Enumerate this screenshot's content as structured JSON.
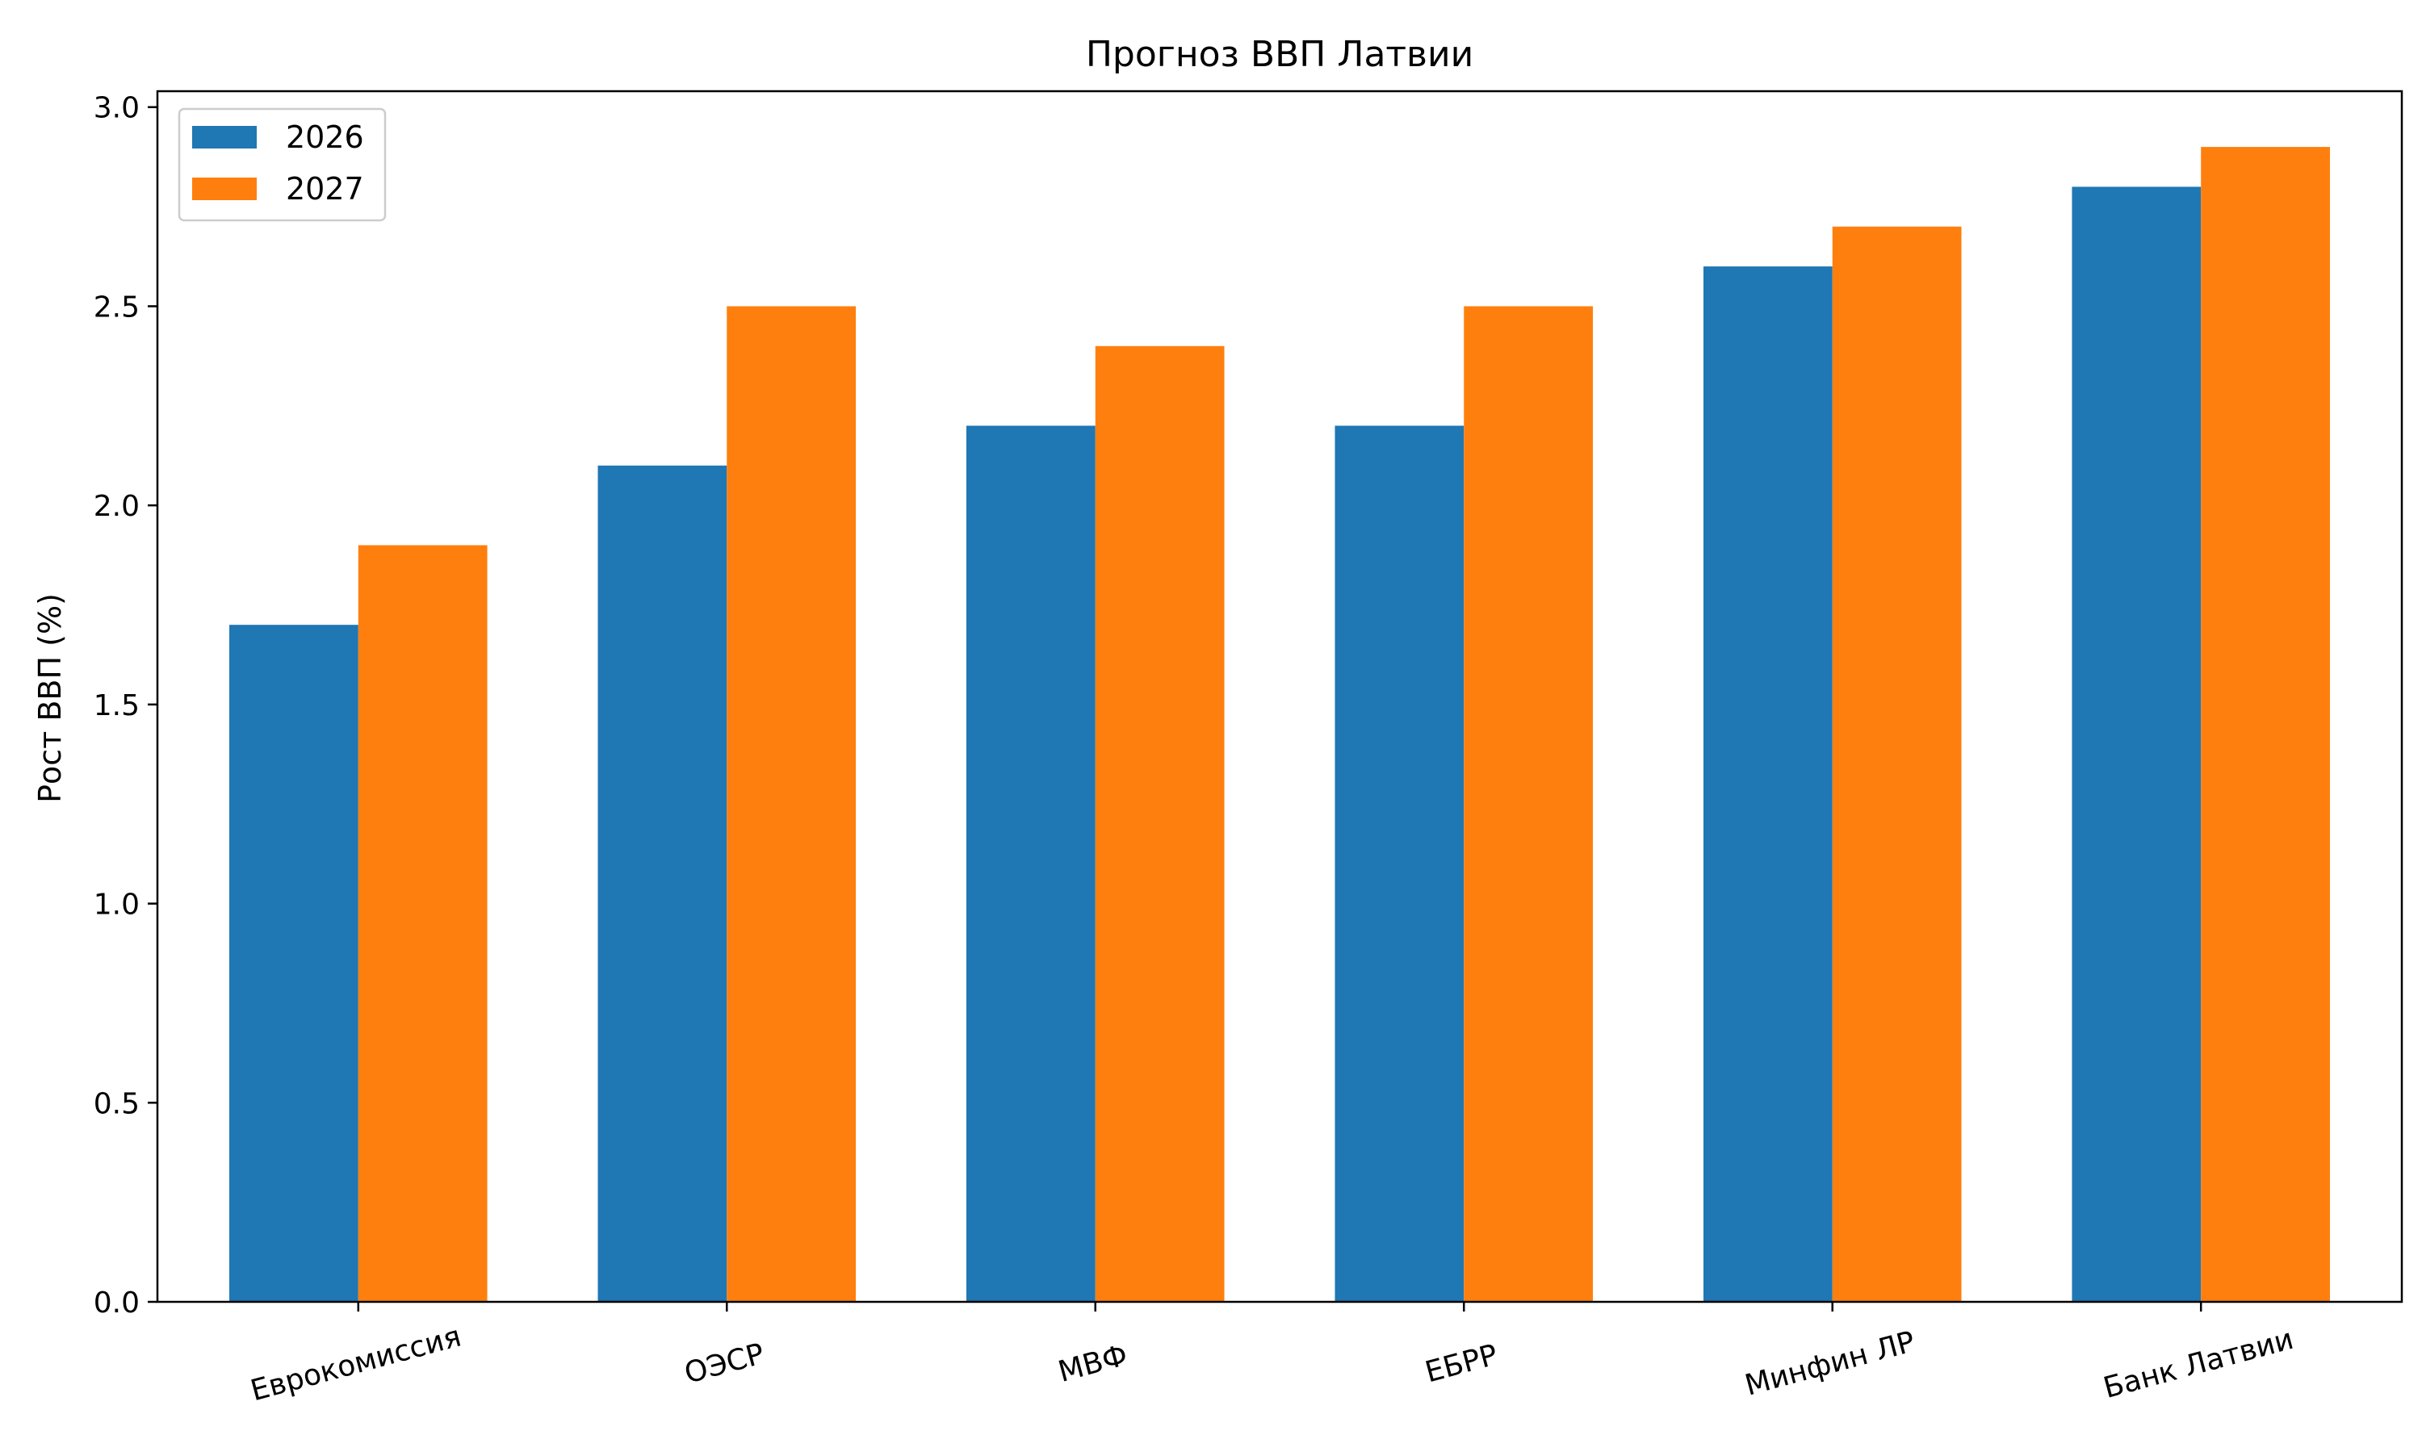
{
  "chart_data": {
    "type": "bar",
    "title": "Прогноз ВВП Латвии",
    "xlabel": "",
    "ylabel": "Рост ВВП (%)",
    "categories": [
      "Еврокомиссия",
      "ОЭСР",
      "МВФ",
      "ЕБРР",
      "Минфин ЛР",
      "Банк Латвии"
    ],
    "series": [
      {
        "name": "2026",
        "color": "#1f77b4",
        "values": [
          1.7,
          2.1,
          2.2,
          2.2,
          2.6,
          2.8
        ]
      },
      {
        "name": "2027",
        "color": "#ff7f0e",
        "values": [
          1.9,
          2.5,
          2.4,
          2.5,
          2.7,
          2.9
        ]
      }
    ],
    "ylim": [
      0,
      3.04
    ],
    "yticks": [
      "0.0",
      "0.5",
      "1.0",
      "1.5",
      "2.0",
      "2.5",
      "3.0"
    ],
    "grid": false,
    "legend": "top-left"
  }
}
